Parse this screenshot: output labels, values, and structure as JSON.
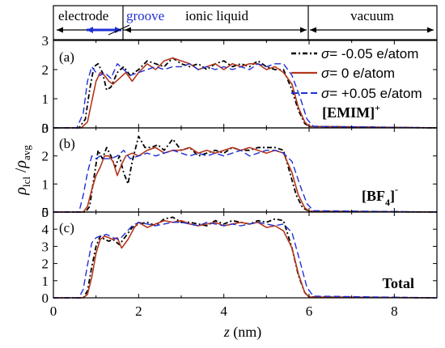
{
  "chart_data": {
    "type": "line",
    "xlabel_var": "z",
    "xlabel_unit": " (nm)",
    "ylabel_main": "ρ",
    "ylabel_sub1": "lcl",
    "ylabel_slash": " /",
    "ylabel_main2": "ρ",
    "ylabel_sub2": "avg",
    "xlim": [
      0,
      9
    ],
    "x_ticks": [
      "0",
      "2",
      "4",
      "6",
      "8"
    ],
    "regions": {
      "electrode": "electrode",
      "groove": "groove",
      "ionic_liquid": "ionic liquid",
      "vacuum": "vacuum"
    },
    "legend": [
      {
        "prefix": "σ",
        "text": "= -0.05 e/atom",
        "color": "#000000",
        "dash": "dashdot"
      },
      {
        "prefix": "σ",
        "text": "= 0 e/atom",
        "color": "#b5361c",
        "dash": "solid"
      },
      {
        "prefix": "σ",
        "text": "= +0.05 e/atom",
        "color": "#1f2fd6",
        "dash": "dashed"
      }
    ],
    "panels": [
      {
        "tag": "(a)",
        "label_main": "[EMIM]",
        "label_sup": "+",
        "label_sub": "",
        "label_tail": "",
        "ylim": [
          0,
          3
        ],
        "y_ticks": [
          "0",
          "1",
          "2",
          "3"
        ],
        "series": [
          {
            "x": [
              0,
              0.6,
              0.75,
              0.85,
              0.95,
              1.05,
              1.15,
              1.25,
              1.35,
              1.5,
              1.65,
              1.8,
              2.0,
              2.2,
              2.4,
              2.6,
              2.8,
              3.0,
              3.2,
              3.4,
              3.6,
              3.8,
              4.0,
              4.2,
              4.4,
              4.6,
              4.8,
              5.0,
              5.2,
              5.4,
              5.6,
              5.75,
              5.9,
              6.0,
              9.0
            ],
            "y": [
              0,
              0,
              0.3,
              1.3,
              2.1,
              2.2,
              1.9,
              1.3,
              1.4,
              1.9,
              2.1,
              1.8,
              2.0,
              2.3,
              2.2,
              2.1,
              2.4,
              2.2,
              2.1,
              2.2,
              2.0,
              2.2,
              2.3,
              2.1,
              2.2,
              2.1,
              2.3,
              2.1,
              2.0,
              2.0,
              1.3,
              0.6,
              0.15,
              0.05,
              0
            ]
          },
          {
            "x": [
              0,
              0.65,
              0.8,
              0.9,
              1.0,
              1.1,
              1.2,
              1.3,
              1.4,
              1.55,
              1.7,
              1.85,
              2.0,
              2.2,
              2.4,
              2.6,
              2.8,
              3.0,
              3.2,
              3.4,
              3.6,
              3.8,
              4.0,
              4.2,
              4.4,
              4.6,
              4.8,
              5.0,
              5.2,
              5.4,
              5.6,
              5.75,
              5.9,
              6.0,
              9.0
            ],
            "y": [
              0,
              0,
              0.2,
              0.9,
              1.6,
              1.9,
              1.8,
              1.6,
              1.5,
              1.7,
              1.9,
              1.6,
              1.9,
              2.2,
              2.0,
              2.3,
              2.4,
              2.3,
              2.2,
              2.0,
              2.1,
              2.2,
              2.0,
              2.2,
              2.1,
              2.2,
              2.2,
              2.0,
              2.1,
              1.9,
              1.5,
              0.7,
              0.2,
              0.05,
              0
            ]
          },
          {
            "x": [
              0,
              0.55,
              0.7,
              0.8,
              0.9,
              1.0,
              1.1,
              1.2,
              1.35,
              1.5,
              1.65,
              1.8,
              2.0,
              2.2,
              2.4,
              2.6,
              2.8,
              3.0,
              3.2,
              3.4,
              3.6,
              3.8,
              4.0,
              4.2,
              4.4,
              4.6,
              4.8,
              5.0,
              5.2,
              5.4,
              5.6,
              5.8,
              5.95,
              6.1,
              9.0
            ],
            "y": [
              0,
              0,
              0.5,
              1.6,
              2.1,
              1.9,
              1.8,
              1.9,
              1.7,
              2.2,
              2.0,
              1.8,
              1.9,
              2.0,
              2.1,
              2.0,
              2.1,
              2.1,
              2.2,
              2.0,
              2.1,
              2.0,
              2.1,
              2.0,
              2.1,
              2.0,
              2.2,
              2.1,
              2.2,
              2.2,
              1.8,
              1.0,
              0.3,
              0.05,
              0
            ]
          }
        ]
      },
      {
        "tag": "(b)",
        "label_main": "[BF",
        "label_sup": "-",
        "label_sub": "4",
        "label_tail": "]",
        "ylim": [
          0,
          3
        ],
        "y_ticks": [
          "0",
          "1",
          "2",
          "3"
        ],
        "series": [
          {
            "x": [
              0,
              0.75,
              0.85,
              0.95,
              1.05,
              1.15,
              1.25,
              1.35,
              1.45,
              1.55,
              1.65,
              1.75,
              1.85,
              2.0,
              2.15,
              2.3,
              2.45,
              2.6,
              2.8,
              3.0,
              3.2,
              3.4,
              3.6,
              3.8,
              4.0,
              4.2,
              4.4,
              4.6,
              4.8,
              5.0,
              5.2,
              5.4,
              5.55,
              5.7,
              5.85,
              6.0,
              9.0
            ],
            "y": [
              0,
              0,
              0.2,
              1.2,
              2.2,
              1.9,
              2.3,
              2.0,
              1.6,
              2.0,
              1.4,
              1.0,
              1.8,
              2.7,
              2.3,
              2.3,
              2.4,
              2.2,
              2.6,
              2.2,
              2.3,
              2.0,
              2.1,
              2.2,
              2.1,
              2.3,
              2.2,
              2.2,
              2.3,
              2.3,
              2.3,
              2.2,
              1.4,
              0.6,
              0.15,
              0.03,
              0
            ]
          },
          {
            "x": [
              0,
              0.7,
              0.8,
              0.9,
              1.0,
              1.1,
              1.2,
              1.3,
              1.4,
              1.5,
              1.6,
              1.7,
              1.85,
              2.0,
              2.2,
              2.4,
              2.6,
              2.8,
              3.0,
              3.2,
              3.4,
              3.6,
              3.8,
              4.0,
              4.2,
              4.4,
              4.6,
              4.8,
              5.0,
              5.2,
              5.4,
              5.6,
              5.75,
              5.9,
              6.0,
              9.0
            ],
            "y": [
              0,
              0,
              0.2,
              0.8,
              1.3,
              1.6,
              2.0,
              2.0,
              1.8,
              1.3,
              1.7,
              2.0,
              2.1,
              2.0,
              2.2,
              2.3,
              2.1,
              2.2,
              2.2,
              2.3,
              2.1,
              2.2,
              2.1,
              2.2,
              2.3,
              2.2,
              2.3,
              2.2,
              2.1,
              2.2,
              2.1,
              1.4,
              0.6,
              0.15,
              0.03,
              0
            ]
          },
          {
            "x": [
              0,
              0.6,
              0.7,
              0.8,
              0.9,
              1.0,
              1.1,
              1.2,
              1.35,
              1.5,
              1.65,
              1.8,
              2.0,
              2.2,
              2.4,
              2.6,
              2.8,
              3.0,
              3.2,
              3.4,
              3.6,
              3.8,
              4.0,
              4.2,
              4.4,
              4.6,
              4.8,
              5.0,
              5.2,
              5.4,
              5.6,
              5.8,
              5.95,
              6.1,
              9.0
            ],
            "y": [
              0,
              0,
              0.6,
              1.4,
              2.0,
              1.9,
              2.0,
              1.9,
              1.9,
              2.0,
              2.2,
              1.9,
              2.0,
              2.1,
              2.0,
              2.1,
              2.2,
              2.1,
              2.0,
              2.1,
              2.0,
              2.1,
              2.0,
              2.1,
              2.2,
              2.0,
              2.1,
              2.2,
              2.2,
              2.1,
              1.8,
              0.9,
              0.3,
              0.05,
              0
            ]
          }
        ]
      },
      {
        "tag": "(c)",
        "label_main": "Total",
        "label_sup": "",
        "label_sub": "",
        "label_tail": "",
        "ylim": [
          0,
          5
        ],
        "y_ticks": [
          "0",
          "1",
          "2",
          "3",
          "4",
          "5"
        ],
        "series": [
          {
            "x": [
              0,
              0.7,
              0.8,
              0.9,
              1.0,
              1.1,
              1.2,
              1.3,
              1.4,
              1.55,
              1.7,
              1.85,
              2.0,
              2.2,
              2.4,
              2.6,
              2.8,
              3.0,
              3.2,
              3.4,
              3.6,
              3.8,
              4.0,
              4.2,
              4.4,
              4.6,
              4.8,
              5.0,
              5.2,
              5.4,
              5.6,
              5.75,
              5.9,
              6.0,
              9.0
            ],
            "y": [
              0,
              0,
              0.4,
              1.8,
              3.0,
              3.6,
              3.4,
              3.3,
              3.4,
              3.1,
              3.6,
              4.1,
              4.3,
              4.4,
              4.2,
              4.6,
              4.7,
              4.4,
              4.4,
              4.3,
              4.2,
              4.5,
              4.3,
              4.5,
              4.4,
              4.3,
              4.5,
              4.4,
              4.6,
              4.5,
              2.9,
              1.3,
              0.3,
              0.05,
              0
            ]
          },
          {
            "x": [
              0,
              0.7,
              0.8,
              0.9,
              1.0,
              1.1,
              1.2,
              1.3,
              1.4,
              1.5,
              1.6,
              1.75,
              1.9,
              2.0,
              2.2,
              2.4,
              2.6,
              2.8,
              3.0,
              3.2,
              3.4,
              3.6,
              3.8,
              4.0,
              4.2,
              4.4,
              4.6,
              4.8,
              5.0,
              5.2,
              5.4,
              5.6,
              5.75,
              5.9,
              6.0,
              9.0
            ],
            "y": [
              0,
              0,
              0.2,
              1.2,
              2.6,
              3.4,
              3.6,
              3.5,
              3.4,
              3.5,
              2.9,
              3.4,
              4.1,
              4.4,
              4.1,
              4.3,
              4.5,
              4.4,
              4.5,
              4.3,
              4.2,
              4.3,
              4.4,
              4.2,
              4.3,
              4.4,
              4.3,
              4.4,
              4.1,
              4.2,
              3.9,
              2.9,
              1.4,
              0.3,
              0.05,
              0
            ]
          },
          {
            "x": [
              0,
              0.6,
              0.7,
              0.8,
              0.9,
              1.0,
              1.1,
              1.25,
              1.4,
              1.55,
              1.7,
              1.85,
              2.0,
              2.2,
              2.4,
              2.6,
              2.8,
              3.0,
              3.2,
              3.4,
              3.6,
              3.8,
              4.0,
              4.2,
              4.4,
              4.6,
              4.8,
              5.0,
              5.2,
              5.4,
              5.6,
              5.8,
              5.95,
              6.1,
              9.0
            ],
            "y": [
              0,
              0,
              0.5,
              1.9,
              3.2,
              3.5,
              3.6,
              3.7,
              3.5,
              3.4,
              3.8,
              4.2,
              4.4,
              4.3,
              4.2,
              4.3,
              4.4,
              4.4,
              4.3,
              4.2,
              4.4,
              4.3,
              4.2,
              4.3,
              4.2,
              4.3,
              4.4,
              4.3,
              4.2,
              4.3,
              3.8,
              2.0,
              0.6,
              0.1,
              0
            ]
          }
        ]
      }
    ]
  }
}
